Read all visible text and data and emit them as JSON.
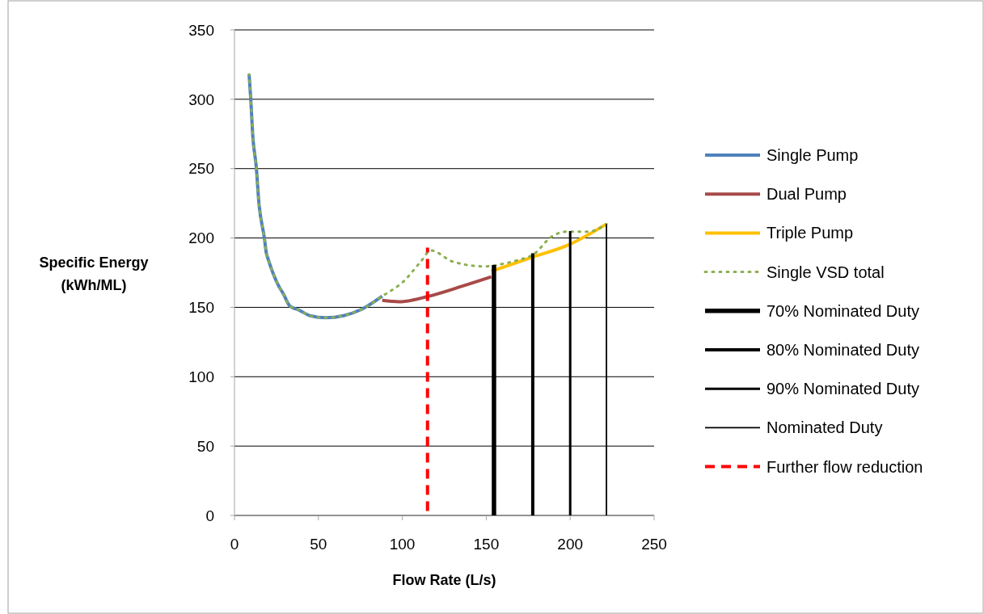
{
  "chart_data": {
    "type": "line",
    "xlabel": "Flow Rate (L/s)",
    "ylabel": "Specific Energy (kWh/ML)",
    "xlim": [
      0,
      250
    ],
    "xticks": [
      0,
      50,
      100,
      150,
      200,
      250
    ],
    "ylim": [
      0,
      350
    ],
    "yticks": [
      0,
      50,
      100,
      150,
      200,
      250,
      300,
      350
    ],
    "grid": "y",
    "legend": "right",
    "series": [
      {
        "name": "Single Pump",
        "color": "#4f81bd",
        "x": [
          8.7,
          9.6,
          11,
          13,
          14.5,
          17.8,
          19,
          20,
          26.5,
          29,
          33,
          38.5,
          45,
          54.4,
          65,
          75.6,
          88
        ],
        "values": [
          318,
          302,
          272,
          251,
          226,
          200,
          189,
          185,
          165,
          160,
          151,
          148,
          144,
          142.5,
          144,
          148.5,
          158
        ]
      },
      {
        "name": "Dual Pump",
        "color": "#a84a48",
        "x": [
          88,
          98,
          115.6,
          135,
          153
        ],
        "values": [
          155,
          154,
          158,
          165,
          172
        ]
      },
      {
        "name": "Triple Pump",
        "color": "#ffc000",
        "x": [
          153,
          177,
          199,
          221.6
        ],
        "values": [
          176,
          186,
          195,
          210
        ]
      },
      {
        "name": "Single VSD total",
        "color": "#8cae52",
        "line_style": "dotted",
        "x": [
          8.7,
          9.6,
          11,
          13,
          14.5,
          17.8,
          19,
          20,
          26.5,
          29,
          33,
          38.5,
          45,
          54.4,
          65,
          75.6,
          88,
          101,
          111,
          117,
          130,
          149,
          153,
          168.6,
          178,
          189,
          197.5,
          210.5,
          221.6
        ],
        "values": [
          318,
          302,
          272,
          251,
          226,
          200,
          189,
          185,
          165,
          160,
          151,
          148,
          144,
          142.5,
          144,
          148.5,
          158,
          169,
          183,
          191,
          183,
          179.5,
          180,
          184,
          188,
          201,
          204.5,
          204.5,
          210
        ]
      },
      {
        "name": "70% Nominated Duty",
        "color": "#000000",
        "x": [
          154.6,
          154.6
        ],
        "values": [
          0,
          180.5
        ]
      },
      {
        "name": "80% Nominated Duty",
        "color": "#000000",
        "x": [
          177.7,
          177.7
        ],
        "values": [
          0,
          189
        ]
      },
      {
        "name": "90% Nominated Duty",
        "color": "#000000",
        "x": [
          200,
          200
        ],
        "values": [
          0,
          205
        ]
      },
      {
        "name": "Nominated Duty",
        "color": "#000000",
        "x": [
          221.6,
          221.6
        ],
        "values": [
          0,
          210
        ]
      },
      {
        "name": "Further flow reduction",
        "color": "#ff0000",
        "line_style": "dashed",
        "x": [
          115,
          115
        ],
        "values": [
          0,
          193
        ]
      }
    ]
  }
}
